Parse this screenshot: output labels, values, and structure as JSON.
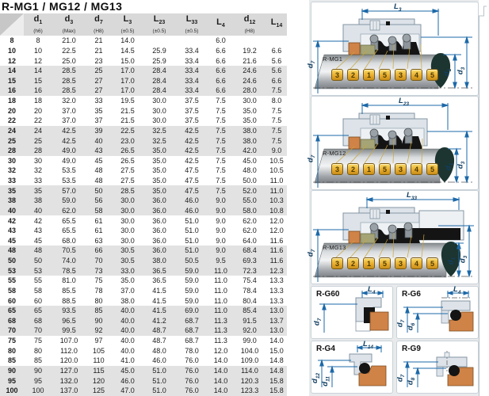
{
  "title": "R-MG1 / MG12 / MG13",
  "table": {
    "columns": [
      {
        "base": "",
        "sub": "",
        "note": ""
      },
      {
        "base": "d",
        "sub": "1",
        "note": "(h6)"
      },
      {
        "base": "d",
        "sub": "3",
        "note": "(Max)"
      },
      {
        "base": "d",
        "sub": "7",
        "note": "(H8)"
      },
      {
        "base": "L",
        "sub": "3",
        "note": "(±0.5)"
      },
      {
        "base": "L",
        "sub": "23",
        "note": "(±0.5)"
      },
      {
        "base": "L",
        "sub": "33",
        "note": "(±0.5)"
      },
      {
        "base": "L",
        "sub": "4",
        "note": ""
      },
      {
        "base": "d",
        "sub": "12",
        "note": "(H8)"
      },
      {
        "base": "L",
        "sub": "14",
        "note": ""
      }
    ],
    "rows": [
      [
        "8",
        "8",
        "21.0",
        "21",
        "14.0",
        "",
        "",
        "6.0",
        "",
        ""
      ],
      [
        "10",
        "10",
        "22.5",
        "21",
        "14.5",
        "25.9",
        "33.4",
        "6.6",
        "19.2",
        "6.6"
      ],
      [
        "12",
        "12",
        "25.0",
        "23",
        "15.0",
        "25.9",
        "33.4",
        "6.6",
        "21.6",
        "5.6"
      ],
      [
        "14",
        "14",
        "28.5",
        "25",
        "17.0",
        "28.4",
        "33.4",
        "6.6",
        "24.6",
        "5.6"
      ],
      [
        "15",
        "15",
        "28.5",
        "27",
        "17.0",
        "28.4",
        "33.4",
        "6.6",
        "24.6",
        "6.6"
      ],
      [
        "16",
        "16",
        "28.5",
        "27",
        "17.0",
        "28.4",
        "33.4",
        "6.6",
        "28.0",
        "7.5"
      ],
      [
        "18",
        "18",
        "32.0",
        "33",
        "19.5",
        "30.0",
        "37.5",
        "7.5",
        "30.0",
        "8.0"
      ],
      [
        "20",
        "20",
        "37.0",
        "35",
        "21.5",
        "30.0",
        "37.5",
        "7.5",
        "35.0",
        "7.5"
      ],
      [
        "22",
        "22",
        "37.0",
        "37",
        "21.5",
        "30.0",
        "37.5",
        "7.5",
        "35.0",
        "7.5"
      ],
      [
        "24",
        "24",
        "42.5",
        "39",
        "22.5",
        "32.5",
        "42.5",
        "7.5",
        "38.0",
        "7.5"
      ],
      [
        "25",
        "25",
        "42.5",
        "40",
        "23.0",
        "32.5",
        "42.5",
        "7.5",
        "38.0",
        "7.5"
      ],
      [
        "28",
        "28",
        "49.0",
        "43",
        "26.5",
        "35.0",
        "42.5",
        "7.5",
        "42.0",
        "9.0"
      ],
      [
        "30",
        "30",
        "49.0",
        "45",
        "26.5",
        "35.0",
        "42.5",
        "7.5",
        "45.0",
        "10.5"
      ],
      [
        "32",
        "32",
        "53.5",
        "48",
        "27.5",
        "35.0",
        "47.5",
        "7.5",
        "48.0",
        "10.5"
      ],
      [
        "33",
        "33",
        "53.5",
        "48",
        "27.5",
        "35.0",
        "47.5",
        "7.5",
        "50.0",
        "11.0"
      ],
      [
        "35",
        "35",
        "57.0",
        "50",
        "28.5",
        "35.0",
        "47.5",
        "7.5",
        "52.0",
        "11.0"
      ],
      [
        "38",
        "38",
        "59.0",
        "56",
        "30.0",
        "36.0",
        "46.0",
        "9.0",
        "55.0",
        "10.3"
      ],
      [
        "40",
        "40",
        "62.0",
        "58",
        "30.0",
        "36.0",
        "46.0",
        "9.0",
        "58.0",
        "10.8"
      ],
      [
        "42",
        "42",
        "65.5",
        "61",
        "30.0",
        "36.0",
        "51.0",
        "9.0",
        "62.0",
        "12.0"
      ],
      [
        "43",
        "43",
        "65.5",
        "61",
        "30.0",
        "36.0",
        "51.0",
        "9.0",
        "62.0",
        "12.0"
      ],
      [
        "45",
        "45",
        "68.0",
        "63",
        "30.0",
        "36.0",
        "51.0",
        "9.0",
        "64.0",
        "11.6"
      ],
      [
        "48",
        "48",
        "70.5",
        "66",
        "30.5",
        "36.0",
        "51.0",
        "9.0",
        "68.4",
        "11.6"
      ],
      [
        "50",
        "50",
        "74.0",
        "70",
        "30.5",
        "38.0",
        "50.5",
        "9.5",
        "69.3",
        "11.6"
      ],
      [
        "53",
        "53",
        "78.5",
        "73",
        "33.0",
        "36.5",
        "59.0",
        "11.0",
        "72.3",
        "12.3"
      ],
      [
        "55",
        "55",
        "81.0",
        "75",
        "35.0",
        "36.5",
        "59.0",
        "11.0",
        "75.4",
        "13.3"
      ],
      [
        "58",
        "58",
        "85.5",
        "78",
        "37.0",
        "41.5",
        "59.0",
        "11.0",
        "78.4",
        "13.3"
      ],
      [
        "60",
        "60",
        "88.5",
        "80",
        "38.0",
        "41.5",
        "59.0",
        "11.0",
        "80.4",
        "13.3"
      ],
      [
        "65",
        "65",
        "93.5",
        "85",
        "40.0",
        "41.5",
        "69.0",
        "11.0",
        "85.4",
        "13.0"
      ],
      [
        "68",
        "68",
        "96.5",
        "90",
        "40.0",
        "41.2",
        "68.7",
        "11.3",
        "91.5",
        "13.7"
      ],
      [
        "70",
        "70",
        "99.5",
        "92",
        "40.0",
        "48.7",
        "68.7",
        "11.3",
        "92.0",
        "13.0"
      ],
      [
        "75",
        "75",
        "107.0",
        "97",
        "40.0",
        "48.7",
        "68.7",
        "11.3",
        "99.0",
        "14.0"
      ],
      [
        "80",
        "80",
        "112.0",
        "105",
        "40.0",
        "48.0",
        "78.0",
        "12.0",
        "104.0",
        "15.0"
      ],
      [
        "85",
        "85",
        "120.0",
        "110",
        "41.0",
        "46.0",
        "76.0",
        "14.0",
        "109.0",
        "14.8"
      ],
      [
        "90",
        "90",
        "127.0",
        "115",
        "45.0",
        "51.0",
        "76.0",
        "14.0",
        "114.0",
        "14.8"
      ],
      [
        "95",
        "95",
        "132.0",
        "120",
        "46.0",
        "51.0",
        "76.0",
        "14.0",
        "120.3",
        "15.8"
      ],
      [
        "100",
        "100",
        "137.0",
        "125",
        "47.0",
        "51.0",
        "76.0",
        "14.0",
        "123.3",
        "15.8"
      ]
    ]
  },
  "diagrams": [
    {
      "label": "R-MG1",
      "dim_top": {
        "base": "L",
        "sub": "3"
      },
      "dim_left": {
        "base": "d",
        "sub": "7"
      },
      "dim_right1": {
        "base": "d",
        "sub": "1"
      },
      "dim_right2": {
        "base": "d",
        "sub": "3"
      },
      "tags": [
        "3",
        "2",
        "1",
        "5",
        "3",
        "4",
        "5"
      ]
    },
    {
      "label": "R-MG12",
      "dim_top": {
        "base": "L",
        "sub": "23"
      },
      "dim_left": {
        "base": "d",
        "sub": "7"
      },
      "dim_right1": {
        "base": "d",
        "sub": "1"
      },
      "dim_right2": {
        "base": "d",
        "sub": "3"
      },
      "tags": [
        "3",
        "2",
        "1",
        "5",
        "3",
        "4",
        "5"
      ]
    },
    {
      "label": "R-MG13",
      "dim_top": {
        "base": "L",
        "sub": "33"
      },
      "dim_left": {
        "base": "d",
        "sub": "7"
      },
      "dim_right1": {
        "base": "d",
        "sub": "1"
      },
      "dim_right2": {
        "base": "d",
        "sub": "3"
      },
      "tags": [
        "3",
        "2",
        "1",
        "5",
        "3",
        "4",
        "5"
      ]
    }
  ],
  "small_diagrams": [
    {
      "label": "R-G60",
      "dim_top": {
        "base": "L",
        "sub": "4"
      },
      "dim_a": {
        "base": "d",
        "sub": "7"
      },
      "dim_b": null
    },
    {
      "label": "R-G6",
      "dim_top": {
        "base": "L",
        "sub": "4"
      },
      "dim_a": {
        "base": "d",
        "sub": "7"
      },
      "dim_b": {
        "base": "d",
        "sub": "6"
      }
    },
    {
      "label": "R-G4",
      "dim_top": {
        "base": "L",
        "sub": "14"
      },
      "dim_a": {
        "base": "d",
        "sub": "12"
      },
      "dim_b": {
        "base": "d",
        "sub": "11"
      }
    },
    {
      "label": "R-G9",
      "dim_top": null,
      "dim_a": {
        "base": "d",
        "sub": "7"
      },
      "dim_b": {
        "base": "d",
        "sub": "8"
      }
    }
  ],
  "colors": {
    "dim_blue": "#1c69a8",
    "tag_gold": "#e9ae2f",
    "seat_orange": "#d08347",
    "ring_olive": "#a4a477",
    "header_gray": "#d9d9d9",
    "band_gray": "#e2e2e2",
    "housing_gray": "#dde3e9",
    "black_part": "#141414"
  }
}
